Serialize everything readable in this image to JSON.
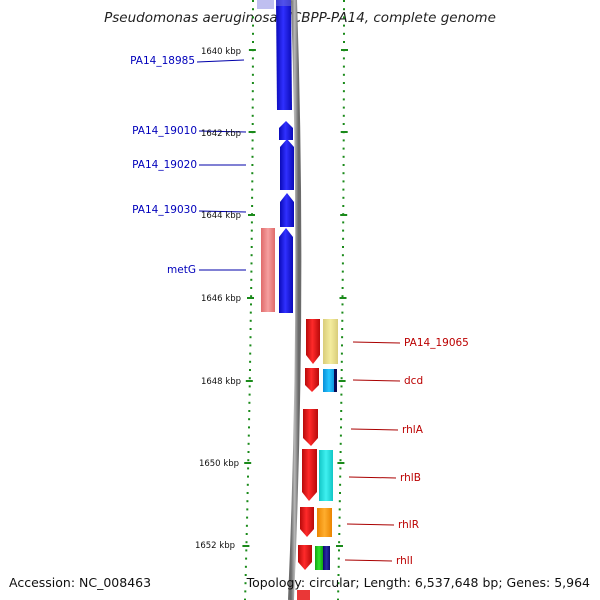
{
  "title": "Pseudomonas aeruginosa UCBPP-PA14, complete genome",
  "accession": "Accession: NC_008463",
  "summary": "Topology: circular; Length: 6,537,648 bp; Genes: 5,964",
  "ruler_labels": [
    "1640 kbp",
    "1642 kbp",
    "1644 kbp",
    "1646 kbp",
    "1648 kbp",
    "1650 kbp",
    "1652 kbp"
  ],
  "colors": {
    "forward": "#1414e6",
    "reverse": "#e61414",
    "tick": "#1a8a1a",
    "backbone": "#888888"
  },
  "forward_genes": [
    {
      "name": "PA14_18985"
    },
    {
      "name": "PA14_19010"
    },
    {
      "name": "PA14_19020"
    },
    {
      "name": "PA14_19030"
    },
    {
      "name": "metG"
    }
  ],
  "reverse_genes": [
    {
      "name": "PA14_19065"
    },
    {
      "name": "dcd"
    },
    {
      "name": "rhlA"
    },
    {
      "name": "rhlB"
    },
    {
      "name": "rhlR"
    },
    {
      "name": "rhlI"
    }
  ]
}
